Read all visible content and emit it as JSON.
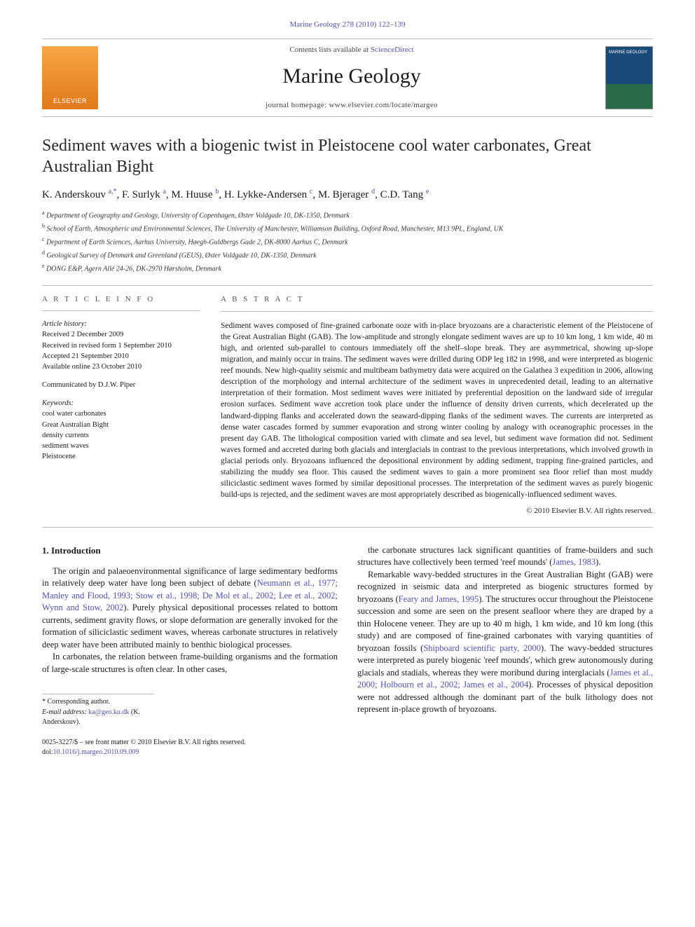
{
  "top_link": {
    "prefix": "",
    "journal": "Marine Geology",
    "volume_pages": "278 (2010) 122–139"
  },
  "masthead": {
    "publisher_logo_text": "ELSEVIER",
    "contents_prefix": "Contents lists available at ",
    "contents_link": "ScienceDirect",
    "journal_name": "Marine Geology",
    "homepage_prefix": "journal homepage: ",
    "homepage_url": "www.elsevier.com/locate/margeo",
    "cover_text": "MARINE GEOLOGY"
  },
  "title": "Sediment waves with a biogenic twist in Pleistocene cool water carbonates, Great Australian Bight",
  "authors": [
    {
      "name": "K. Anderskouv",
      "aff": "a",
      "corresponding": true
    },
    {
      "name": "F. Surlyk",
      "aff": "a"
    },
    {
      "name": "M. Huuse",
      "aff": "b"
    },
    {
      "name": "H. Lykke-Andersen",
      "aff": "c"
    },
    {
      "name": "M. Bjerager",
      "aff": "d"
    },
    {
      "name": "C.D. Tang",
      "aff": "e"
    }
  ],
  "affiliations": [
    {
      "key": "a",
      "text": "Department of Geography and Geology, University of Copenhagen, Øster Voldgade 10, DK-1350, Denmark"
    },
    {
      "key": "b",
      "text": "School of Earth, Atmospheric and Environmental Sciences, The University of Manchester, Williamson Building, Oxford Road, Manchester, M13 9PL, England, UK"
    },
    {
      "key": "c",
      "text": "Department of Earth Sciences, Aarhus University, Høegh-Guldbergs Gade 2, DK-8000 Aarhus C, Denmark"
    },
    {
      "key": "d",
      "text": "Geological Survey of Denmark and Greenland (GEUS), Øster Voldgade 10, DK-1350, Denmark"
    },
    {
      "key": "e",
      "text": "DONG E&P, Agern Allé 24-26, DK-2970 Hørsholm, Denmark"
    }
  ],
  "article_info": {
    "heading": "A R T I C L E   I N F O",
    "history_label": "Article history:",
    "history": [
      "Received 2 December 2009",
      "Received in revised form 1 September 2010",
      "Accepted 21 September 2010",
      "Available online 23 October 2010"
    ],
    "communicated": "Communicated by D.J.W. Piper",
    "keywords_label": "Keywords:",
    "keywords": [
      "cool water carbonates",
      "Great Australian Bight",
      "density currents",
      "sediment waves",
      "Pleistocene"
    ]
  },
  "abstract": {
    "heading": "A B S T R A C T",
    "body": "Sediment waves composed of fine-grained carbonate ooze with in-place bryozoans are a characteristic element of the Pleistocene of the Great Australian Bight (GAB). The low-amplitude and strongly elongate sediment waves are up to 10 km long, 1 km wide, 40 m high, and oriented sub-parallel to contours immediately off the shelf–slope break. They are asymmetrical, showing up-slope migration, and mainly occur in trains. The sediment waves were drilled during ODP leg 182 in 1998, and were interpreted as biogenic reef mounds. New high-quality seismic and multibeam bathymetry data were acquired on the Galathea 3 expedition in 2006, allowing description of the morphology and internal architecture of the sediment waves in unprecedented detail, leading to an alternative interpretation of their formation. Most sediment waves were initiated by preferential deposition on the landward side of irregular erosion surfaces. Sediment wave accretion took place under the influence of density driven currents, which decelerated up the landward-dipping flanks and accelerated down the seaward-dipping flanks of the sediment waves. The currents are interpreted as dense water cascades formed by summer evaporation and strong winter cooling by analogy with oceanographic processes in the present day GAB. The lithological composition varied with climate and sea level, but sediment wave formation did not. Sediment waves formed and accreted during both glacials and interglacials in contrast to the previous interpretations, which involved growth in glacial periods only. Bryozoans influenced the depositional environment by adding sediment, trapping fine-grained particles, and stabilizing the muddy sea floor. This caused the sediment waves to gain a more prominent sea floor relief than most muddy siliciclastic sediment waves formed by similar depositional processes. The interpretation of the sediment waves as purely biogenic build-ups is rejected, and the sediment waves are most appropriately described as biogenically-influenced sediment waves.",
    "copyright": "© 2010 Elsevier B.V. All rights reserved."
  },
  "section": {
    "heading": "1. Introduction",
    "col1": [
      {
        "text": "The origin and palaeoenvironmental significance of large sedimentary bedforms in relatively deep water have long been subject of debate (",
        "refs": [
          "Neumann et al., 1977; Manley and Flood, 1993; Stow et al., 1998; De Mol et al., 2002; Lee et al., 2002; Wynn and Stow, 2002"
        ],
        "text2": "). Purely physical depositional processes related to bottom currents, sediment gravity flows, or slope deformation are generally invoked for the formation of siliciclastic sediment waves, whereas carbonate structures in relatively deep water have been attributed mainly to benthic biological processes."
      },
      {
        "text": "In carbonates, the relation between frame-building organisms and the formation of large-scale structures is often clear. In other cases,"
      }
    ],
    "col2": [
      {
        "text": "the carbonate structures lack significant quantities of frame-builders and such structures have collectively been termed 'reef mounds' (",
        "refs": [
          "James, 1983"
        ],
        "text2": ")."
      },
      {
        "text": "Remarkable wavy-bedded structures in the Great Australian Bight (GAB) were recognized in seismic data and interpreted as biogenic structures formed by bryozoans (",
        "refs": [
          "Feary and James, 1995"
        ],
        "text2": "). The structures occur throughout the Pleistocene succession and some are seen on the present seafloor where they are draped by a thin Holocene veneer. They are up to 40 m high, 1 km wide, and 10 km long (this study) and are composed of fine-grained carbonates with varying quantities of bryozoan fossils (",
        "refs2": [
          "Shipboard scientific party, 2000"
        ],
        "text3": "). The wavy-bedded structures were interpreted as purely biogenic 'reef mounds', which grew autonomously during glacials and stadials, whereas they were moribund during interglacials (",
        "refs3": [
          "James et al., 2000; Holbourn et al., 2002; James et al., 2004"
        ],
        "text4": "). Processes of physical deposition were not addressed although the dominant part of the bulk lithology does not represent in-place growth of bryozoans."
      }
    ]
  },
  "footnotes": {
    "corresponding_label": "* Corresponding author.",
    "email_label": "E-mail address:",
    "email": "ka@geo.ku.dk",
    "email_owner": "(K. Anderskouv)."
  },
  "footer": {
    "line1": "0025-3227/$ – see front matter © 2010 Elsevier B.V. All rights reserved.",
    "line2": "doi:10.1016/j.margeo.2010.09.009"
  },
  "colors": {
    "link": "#5050b0",
    "text": "#1a1a1a",
    "rule": "#bbbbbb",
    "elsevier_grad_top": "#f7a545",
    "elsevier_grad_bot": "#e07a1a",
    "cover_top": "#1a4a7a",
    "cover_bot": "#2a6a4a"
  },
  "typography": {
    "body_pt": 12.5,
    "title_pt": 24,
    "journal_name_pt": 30,
    "info_pt": 10.5,
    "abstract_pt": 11.5,
    "affil_pt": 10,
    "footer_pt": 10
  }
}
